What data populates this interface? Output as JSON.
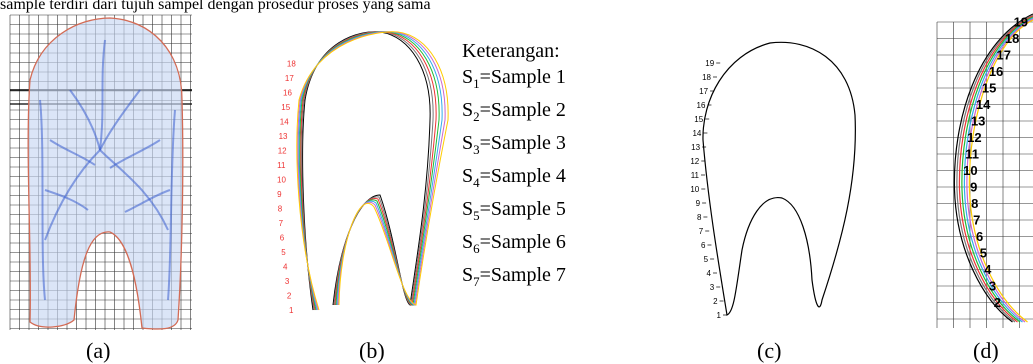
{
  "top_text": "sample terdiri dari tujuh sampel dengan prosedur proses yang sama",
  "legend": {
    "title": "Keterangan:",
    "items": [
      {
        "sub": "1",
        "text": "=Sample 1"
      },
      {
        "sub": "2",
        "text": "=Sample 2"
      },
      {
        "sub": "3",
        "text": "=Sample 3"
      },
      {
        "sub": "4",
        "text": "=Sample 4"
      },
      {
        "sub": "5",
        "text": "=Sample 5"
      },
      {
        "sub": "6",
        "text": "=Sample 6"
      },
      {
        "sub": "7",
        "text": "=Sample 7"
      }
    ]
  },
  "captions": {
    "a": "(a)",
    "b": "(b)",
    "c": "(c)",
    "d": "(d)"
  },
  "point_numbers_c": [
    "1",
    "2",
    "3",
    "4",
    "5",
    "6",
    "7",
    "8",
    "9",
    "10",
    "11",
    "12",
    "13",
    "14",
    "15",
    "16",
    "17",
    "18",
    "19"
  ],
  "point_numbers_b": [
    "1",
    "2",
    "3",
    "4",
    "5",
    "6",
    "7",
    "8",
    "9",
    "10",
    "11",
    "12",
    "13",
    "14",
    "15",
    "16",
    "17",
    "18"
  ],
  "point_numbers_d": [
    "2",
    "3",
    "4",
    "5",
    "6",
    "7",
    "8",
    "9",
    "10",
    "11",
    "12",
    "13",
    "14",
    "15",
    "16",
    "17",
    "18",
    "19"
  ],
  "colors": {
    "grid": "#333333",
    "outline_red": "#cc3333",
    "fish_blue": "#3a5fd0",
    "sample_curves": [
      "#000000",
      "#777777",
      "#ee3333",
      "#22bb33",
      "#33aaee",
      "#cc66cc",
      "#ffcc00"
    ]
  }
}
